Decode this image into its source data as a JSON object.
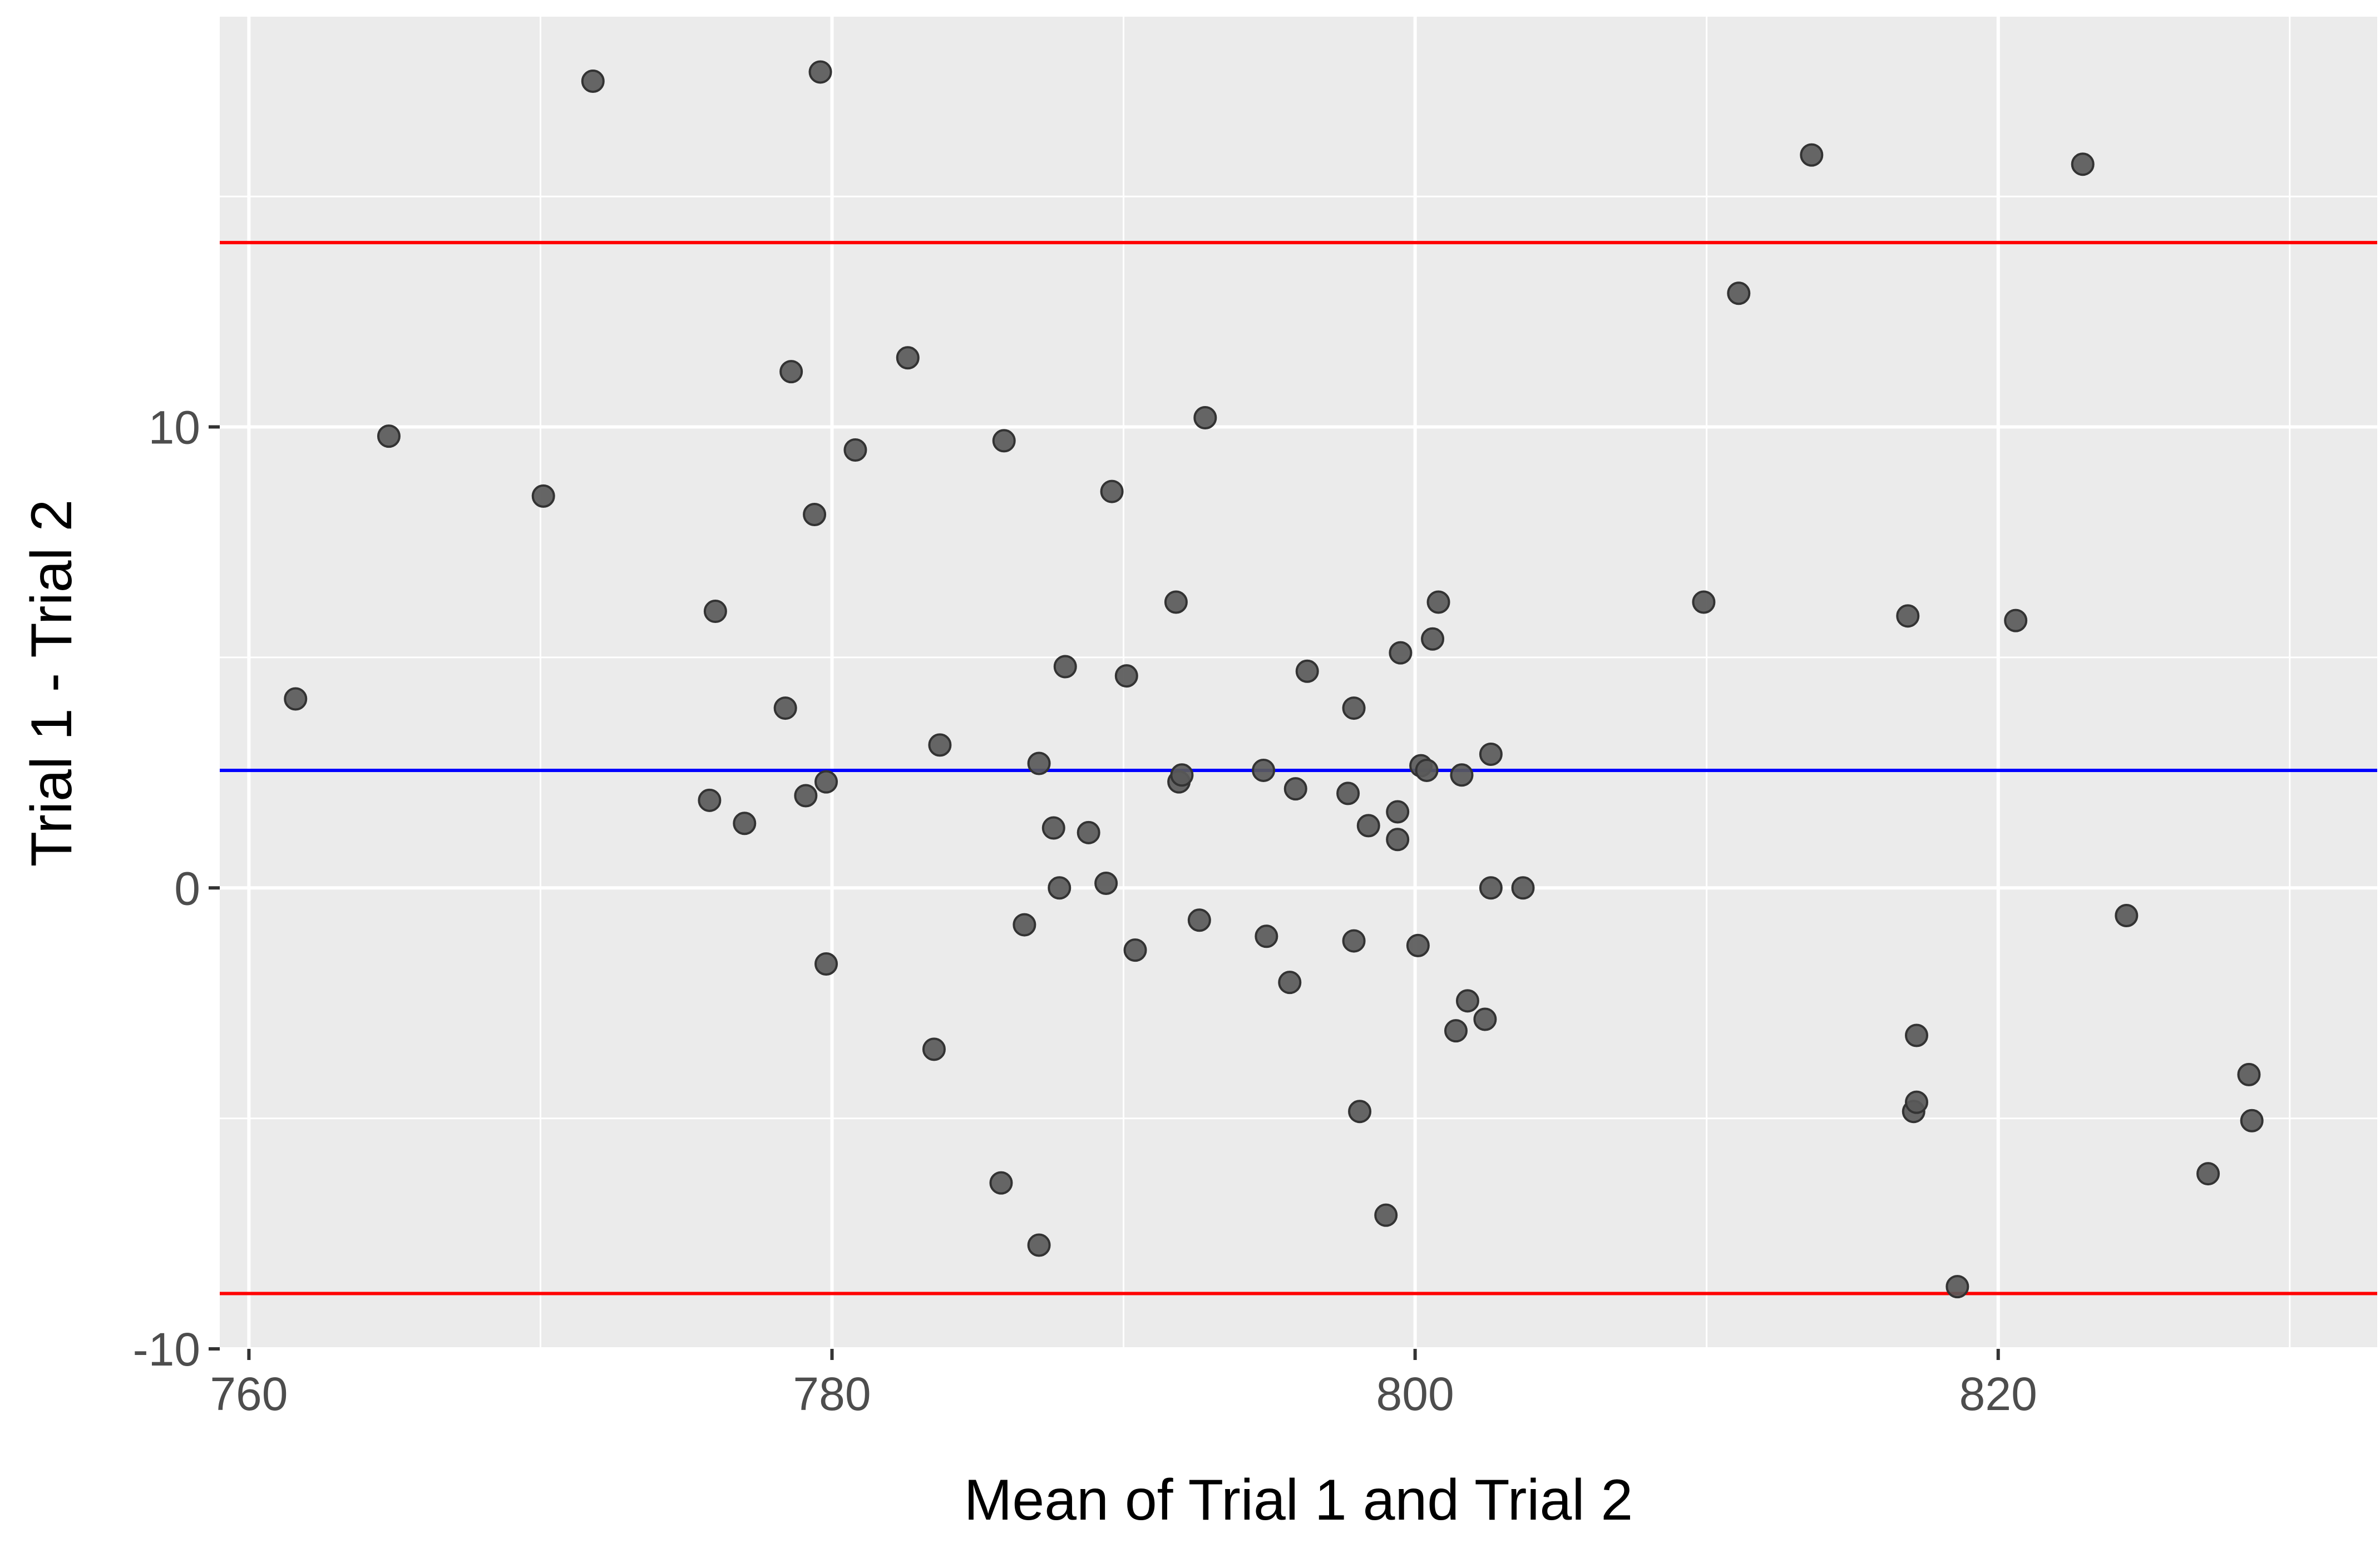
{
  "chart_data": {
    "type": "scatter",
    "title": "",
    "xlabel": "Mean of Trial 1 and Trial 2",
    "ylabel": "Trial 1 -  Trial 2",
    "xlim": [
      759,
      833
    ],
    "ylim": [
      -10,
      18.9
    ],
    "x_ticks": [
      760,
      780,
      800,
      820
    ],
    "x_tick_labels": [
      "760",
      "780",
      "800",
      "820"
    ],
    "y_ticks": [
      -10,
      0,
      10
    ],
    "y_tick_labels": [
      "-10",
      "0",
      "10"
    ],
    "grid": true,
    "legend": "none",
    "reference_lines": [
      {
        "y": 14.0,
        "color": "#ff0000"
      },
      {
        "y": 2.55,
        "color": "#0000ff"
      },
      {
        "y": -8.8,
        "color": "#ff0000"
      }
    ],
    "point_color": "#595959",
    "points": [
      {
        "x": 761.6,
        "y": 4.1
      },
      {
        "x": 764.8,
        "y": 9.8
      },
      {
        "x": 770.1,
        "y": 8.5
      },
      {
        "x": 771.8,
        "y": 17.5
      },
      {
        "x": 775.8,
        "y": 1.9
      },
      {
        "x": 776.0,
        "y": 6.0
      },
      {
        "x": 777.0,
        "y": 1.4
      },
      {
        "x": 778.4,
        "y": 3.9
      },
      {
        "x": 778.6,
        "y": 11.2
      },
      {
        "x": 779.1,
        "y": 2.0
      },
      {
        "x": 779.4,
        "y": 8.1
      },
      {
        "x": 779.6,
        "y": 17.7
      },
      {
        "x": 779.8,
        "y": 2.3
      },
      {
        "x": 779.8,
        "y": -1.65
      },
      {
        "x": 780.8,
        "y": 9.5
      },
      {
        "x": 782.6,
        "y": 11.5
      },
      {
        "x": 783.5,
        "y": -3.5
      },
      {
        "x": 783.7,
        "y": 3.1
      },
      {
        "x": 785.8,
        "y": -6.4
      },
      {
        "x": 785.9,
        "y": 9.7
      },
      {
        "x": 786.6,
        "y": -0.8
      },
      {
        "x": 787.1,
        "y": 2.7
      },
      {
        "x": 787.1,
        "y": -7.75
      },
      {
        "x": 787.6,
        "y": 1.3
      },
      {
        "x": 787.8,
        "y": 0.0
      },
      {
        "x": 788.0,
        "y": 4.8
      },
      {
        "x": 788.8,
        "y": 1.2
      },
      {
        "x": 789.4,
        "y": 0.1
      },
      {
        "x": 789.6,
        "y": 8.6
      },
      {
        "x": 790.1,
        "y": 4.6
      },
      {
        "x": 790.4,
        "y": -1.35
      },
      {
        "x": 791.8,
        "y": 6.2
      },
      {
        "x": 791.9,
        "y": 2.3
      },
      {
        "x": 792.0,
        "y": 2.45
      },
      {
        "x": 792.6,
        "y": -0.7
      },
      {
        "x": 792.8,
        "y": 10.2
      },
      {
        "x": 794.8,
        "y": 2.55
      },
      {
        "x": 794.9,
        "y": -1.05
      },
      {
        "x": 795.7,
        "y": -2.05
      },
      {
        "x": 795.9,
        "y": 2.15
      },
      {
        "x": 796.3,
        "y": 4.7
      },
      {
        "x": 797.7,
        "y": 2.05
      },
      {
        "x": 797.9,
        "y": 3.9
      },
      {
        "x": 797.9,
        "y": -1.15
      },
      {
        "x": 798.1,
        "y": -4.85
      },
      {
        "x": 798.4,
        "y": 1.35
      },
      {
        "x": 799.0,
        "y": -7.1
      },
      {
        "x": 799.4,
        "y": 1.05
      },
      {
        "x": 799.4,
        "y": 1.65
      },
      {
        "x": 799.5,
        "y": 5.1
      },
      {
        "x": 800.1,
        "y": -1.25
      },
      {
        "x": 800.2,
        "y": 2.65
      },
      {
        "x": 800.4,
        "y": 2.55
      },
      {
        "x": 800.6,
        "y": 5.4
      },
      {
        "x": 800.8,
        "y": 6.2
      },
      {
        "x": 801.4,
        "y": -3.1
      },
      {
        "x": 801.6,
        "y": 2.45
      },
      {
        "x": 801.8,
        "y": -2.45
      },
      {
        "x": 802.4,
        "y": -2.85
      },
      {
        "x": 802.6,
        "y": 2.9
      },
      {
        "x": 802.6,
        "y": 0.0
      },
      {
        "x": 803.7,
        "y": 0.0
      },
      {
        "x": 809.9,
        "y": 6.2
      },
      {
        "x": 811.1,
        "y": 12.9
      },
      {
        "x": 813.6,
        "y": 15.9
      },
      {
        "x": 816.9,
        "y": 5.9
      },
      {
        "x": 817.1,
        "y": -4.85
      },
      {
        "x": 817.2,
        "y": -3.2
      },
      {
        "x": 817.2,
        "y": -4.65
      },
      {
        "x": 818.6,
        "y": -8.65
      },
      {
        "x": 820.6,
        "y": 5.8
      },
      {
        "x": 822.9,
        "y": 15.7
      },
      {
        "x": 824.4,
        "y": -0.6
      },
      {
        "x": 827.2,
        "y": -6.2
      },
      {
        "x": 828.6,
        "y": -4.05
      },
      {
        "x": 828.7,
        "y": -5.05
      }
    ]
  }
}
